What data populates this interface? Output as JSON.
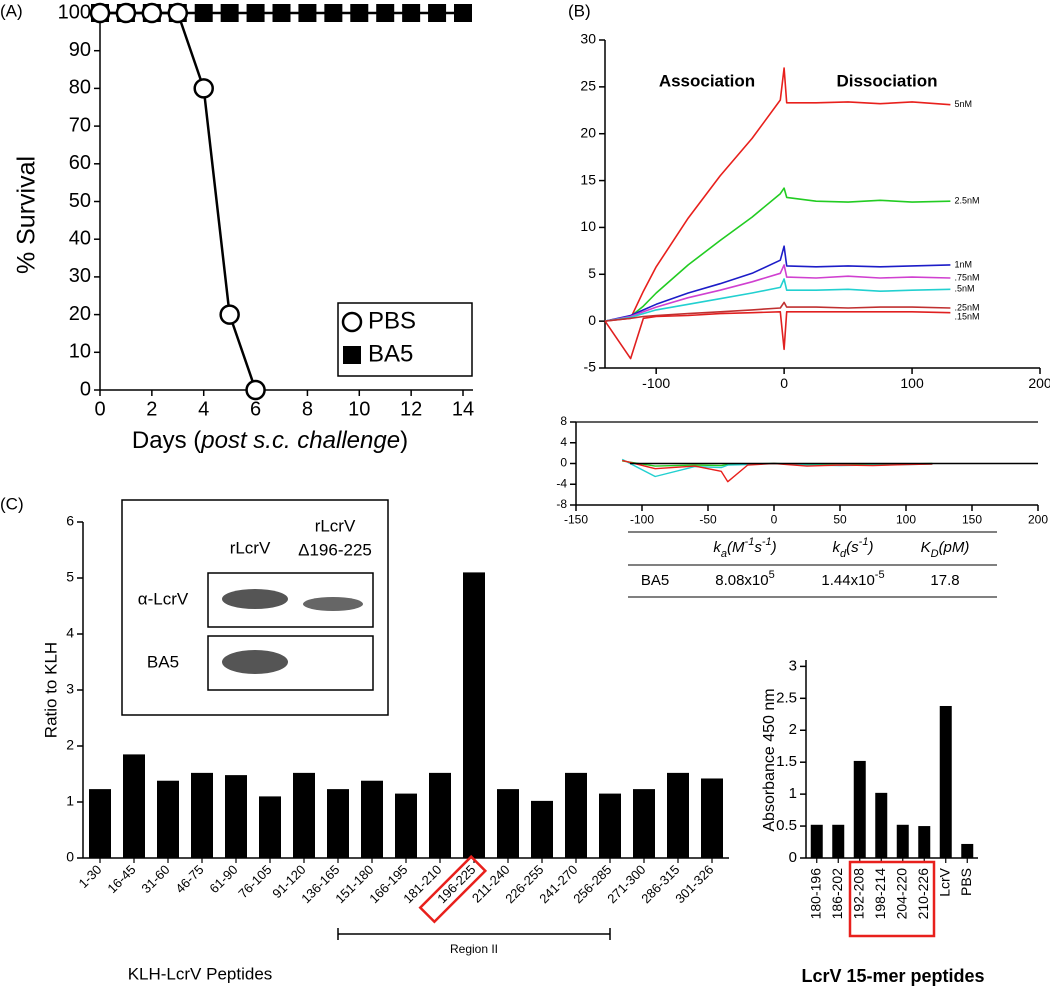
{
  "chart_data": [
    {
      "type": "line",
      "panel_label": "(A)",
      "ylabel": "% Survival",
      "xlabel": [
        "Days (",
        "post s.c. challenge",
        ")"
      ],
      "x": [
        0,
        1,
        2,
        3,
        4,
        5,
        6,
        7,
        8,
        9,
        10,
        11,
        12,
        13,
        14
      ],
      "series": [
        {
          "name": "BA5",
          "marker": "square",
          "color": "#000000",
          "values": [
            100,
            100,
            100,
            100,
            100,
            100,
            100,
            100,
            100,
            100,
            100,
            100,
            100,
            100,
            100
          ]
        },
        {
          "name": "PBS",
          "marker": "circle",
          "color": "#000000",
          "values": [
            100,
            100,
            100,
            100,
            80,
            20,
            0,
            null,
            null,
            null,
            null,
            null,
            null,
            null,
            null
          ]
        }
      ],
      "xlim": [
        0,
        14
      ],
      "ylim": [
        0,
        100
      ],
      "xticks": [
        0,
        2,
        4,
        6,
        8,
        10,
        12,
        14
      ],
      "yticks": [
        0,
        10,
        20,
        30,
        40,
        50,
        60,
        70,
        80,
        90,
        100
      ],
      "legend": "lower right"
    },
    {
      "type": "line",
      "panel_label": "(B)",
      "annotations": [
        "Association",
        "Dissociation"
      ],
      "x": [
        -140,
        -120,
        -110,
        -100,
        -75,
        -50,
        -25,
        -3,
        0,
        2,
        25,
        50,
        75,
        100,
        130
      ],
      "series": [
        {
          "name": "5nM",
          "color": "#e8201c",
          "values": [
            0,
            0.3,
            3.2,
            5.8,
            11,
            15.5,
            19.5,
            23.6,
            27,
            23.3,
            23.3,
            23.4,
            23.2,
            23.4,
            23.1
          ]
        },
        {
          "name": "2.5nM",
          "color": "#22cc22",
          "values": [
            0,
            0.5,
            1.6,
            3,
            6,
            8.6,
            11.1,
            13.6,
            14.2,
            13.2,
            12.8,
            12.7,
            12.9,
            12.7,
            12.8
          ]
        },
        {
          "name": "1nM",
          "color": "#1c1cc8",
          "values": [
            0,
            0.6,
            1.2,
            1.8,
            3,
            4,
            5.1,
            6.5,
            8,
            5.9,
            5.8,
            5.9,
            5.8,
            5.9,
            6
          ]
        },
        {
          "name": ".75nM",
          "color": "#d040d0",
          "values": [
            0,
            0.5,
            1,
            1.5,
            2.5,
            3.3,
            4.2,
            5.1,
            6,
            4.7,
            4.6,
            4.8,
            4.6,
            4.7,
            4.6
          ]
        },
        {
          "name": ".5nM",
          "color": "#22d0d0",
          "values": [
            0,
            0.4,
            0.8,
            1.2,
            1.8,
            2.4,
            3,
            3.6,
            4.5,
            3.3,
            3.3,
            3.4,
            3.2,
            3.3,
            3.4
          ]
        },
        {
          "name": ".25nM",
          "color": "#c03030",
          "values": [
            0,
            0.3,
            0.5,
            0.6,
            0.8,
            1,
            1.2,
            1.4,
            2,
            1.5,
            1.5,
            1.4,
            1.5,
            1.5,
            1.4
          ]
        },
        {
          "name": ".15nM",
          "color": "#e02020",
          "values": [
            0,
            -4,
            0.3,
            0.5,
            0.6,
            0.8,
            0.9,
            1,
            -3,
            1,
            1,
            1,
            1,
            1,
            0.9
          ]
        }
      ],
      "xlim": [
        -140,
        200
      ],
      "ylim": [
        -5,
        30
      ],
      "xticks": [
        -100,
        0,
        100,
        200
      ],
      "yticks": [
        -5,
        0,
        5,
        10,
        15,
        20,
        25,
        30
      ]
    },
    {
      "type": "line",
      "x": [
        -115,
        -90,
        -60,
        -40,
        -35,
        -20,
        0,
        25,
        50,
        75,
        100,
        120
      ],
      "series": [
        {
          "color": "#22cc22",
          "values": [
            0.5,
            -0.5,
            -0.3,
            -0.4,
            -0.2,
            -0.1,
            0,
            -0.2,
            -0.3,
            -0.2,
            -0.1,
            0
          ]
        },
        {
          "color": "#22d0d0",
          "values": [
            0.8,
            -2.5,
            -0.6,
            -0.8,
            -0.3,
            -0.2,
            0,
            -0.3,
            -0.4,
            -0.3,
            -0.2,
            -0.1
          ]
        },
        {
          "color": "#e8201c",
          "values": [
            0.6,
            -1,
            -0.5,
            -1.5,
            -3.5,
            -0.3,
            0,
            -0.5,
            -0.3,
            -0.4,
            -0.2,
            -0.1
          ]
        }
      ],
      "xlim": [
        -150,
        200
      ],
      "ylim": [
        -8,
        8
      ],
      "xticks": [
        -150,
        -100,
        -50,
        0,
        50,
        100,
        150,
        200
      ],
      "yticks": [
        -8,
        -4,
        0,
        4,
        8
      ]
    },
    {
      "type": "bar",
      "panel_label": "(C)",
      "ylabel": "Ratio to KLH",
      "xlabel": "KLH-LcrV Peptides",
      "region_label": "Region II",
      "categories": [
        "1-30",
        "16-45",
        "31-60",
        "46-75",
        "61-90",
        "76-105",
        "91-120",
        "136-165",
        "151-180",
        "166-195",
        "181-210",
        "196-225",
        "211-240",
        "226-255",
        "241-270",
        "256-285",
        "271-300",
        "286-315",
        "301-326"
      ],
      "values": [
        1.23,
        1.85,
        1.38,
        1.52,
        1.48,
        1.1,
        1.52,
        1.23,
        1.38,
        1.15,
        1.52,
        5.1,
        1.23,
        1.02,
        1.52,
        1.15,
        1.23,
        1.52,
        1.42
      ],
      "color": "#000000",
      "ylim": [
        0,
        6
      ],
      "yticks": [
        0,
        1,
        2,
        3,
        4,
        5,
        6
      ],
      "inset": {
        "lanes": [
          [
            "rLcrV"
          ],
          [
            "rLcrV",
            "Δ196-225"
          ]
        ],
        "rows": [
          "α-LcrV",
          "BA5"
        ]
      }
    },
    {
      "type": "bar",
      "ylabel": "Absorbance 450 nm",
      "xlabel": "LcrV 15-mer peptides",
      "categories": [
        "180-196",
        "186-202",
        "192-208",
        "198-214",
        "204-220",
        "210-226",
        "LcrV",
        "PBS"
      ],
      "values": [
        0.52,
        0.52,
        1.52,
        1.02,
        0.52,
        0.5,
        2.38,
        0.22
      ],
      "color": "#000000",
      "ylim": [
        0,
        3.1
      ],
      "yticks": [
        0,
        0.5,
        1,
        1.5,
        2,
        2.5,
        3
      ]
    }
  ],
  "table": {
    "header": [
      [
        {
          "text": "k",
          "style": "italic"
        },
        {
          "text": "a",
          "style": "italic sub"
        },
        {
          "text": "(M",
          "style": "italic"
        },
        {
          "text": "-1",
          "style": "italic sup"
        },
        {
          "text": "s",
          "style": "italic"
        },
        {
          "text": "-1",
          "style": "italic sup"
        },
        {
          "text": ")",
          "style": "italic"
        }
      ],
      [
        {
          "text": "k",
          "style": "italic"
        },
        {
          "text": "d",
          "style": "italic sub"
        },
        {
          "text": "(s",
          "style": "italic"
        },
        {
          "text": "-1",
          "style": "italic sup"
        },
        {
          "text": ")",
          "style": "italic"
        }
      ],
      [
        {
          "text": "K",
          "style": "italic"
        },
        {
          "text": "D",
          "style": "italic sub"
        },
        {
          "text": "(pM)",
          "style": "italic"
        }
      ]
    ],
    "rows": [
      [
        [
          {
            "text": "BA5"
          }
        ],
        [
          {
            "text": "8.08x10"
          },
          {
            "text": "5",
            "style": "sup"
          }
        ],
        [
          {
            "text": "1.44x10"
          },
          {
            "text": "-5",
            "style": "sup"
          }
        ],
        [
          {
            "text": "17.8"
          }
        ]
      ]
    ]
  }
}
